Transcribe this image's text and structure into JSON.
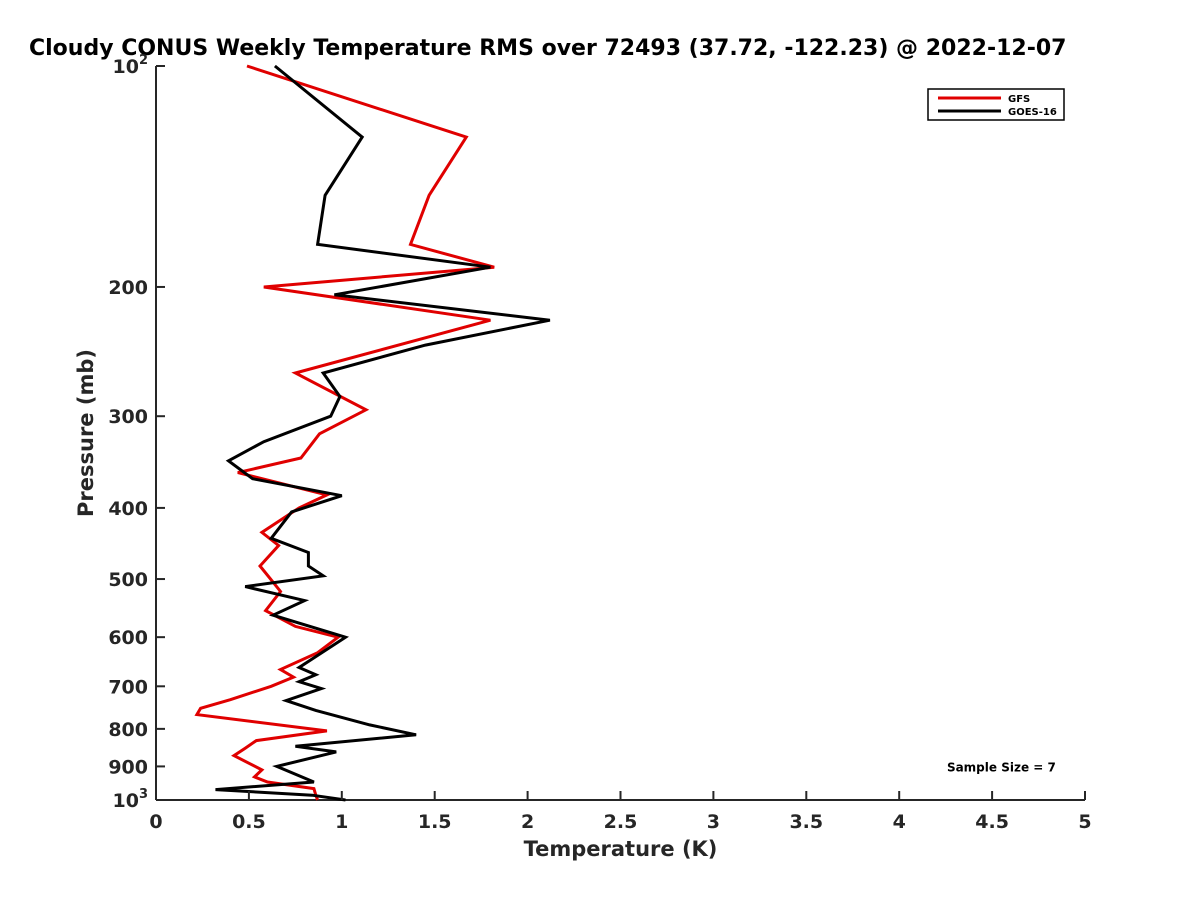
{
  "chart_data": {
    "type": "line",
    "title": "Cloudy CONUS Weekly Temperature RMS over 72493 (37.72, -122.23) @ 2022-12-07",
    "xlabel": "Temperature (K)",
    "ylabel": "Pressure (mb)",
    "xlim": [
      0,
      5
    ],
    "ylim": [
      100,
      1000
    ],
    "y_scale": "log",
    "y_reversed": true,
    "x_ticks": [
      0,
      0.5,
      1,
      1.5,
      2,
      2.5,
      3,
      3.5,
      4,
      4.5,
      5
    ],
    "x_tick_labels": [
      "0",
      "0.5",
      "1",
      "1.5",
      "2",
      "2.5",
      "3",
      "3.5",
      "4",
      "4.5",
      "5"
    ],
    "y_ticks": [
      {
        "value": 100,
        "base": "10",
        "exp": "2"
      },
      {
        "value": 200,
        "label": "200"
      },
      {
        "value": 300,
        "label": "300"
      },
      {
        "value": 400,
        "label": "400"
      },
      {
        "value": 500,
        "label": "500"
      },
      {
        "value": 600,
        "label": "600"
      },
      {
        "value": 700,
        "label": "700"
      },
      {
        "value": 800,
        "label": "800"
      },
      {
        "value": 900,
        "label": "900"
      },
      {
        "value": 1000,
        "base": "10",
        "exp": "3"
      }
    ],
    "grid": false,
    "legend_position": "top-right",
    "series": [
      {
        "name": "GFS",
        "color": "#e00000",
        "points": [
          [
            0.49,
            100
          ],
          [
            1.67,
            125
          ],
          [
            1.47,
            150
          ],
          [
            1.37,
            175
          ],
          [
            1.82,
            188
          ],
          [
            0.58,
            200
          ],
          [
            1.8,
            222
          ],
          [
            0.75,
            262
          ],
          [
            1.13,
            294
          ],
          [
            0.88,
            317
          ],
          [
            0.78,
            342
          ],
          [
            0.44,
            358
          ],
          [
            0.92,
            384
          ],
          [
            0.77,
            400
          ],
          [
            0.57,
            432
          ],
          [
            0.66,
            450
          ],
          [
            0.56,
            480
          ],
          [
            0.63,
            505
          ],
          [
            0.67,
            520
          ],
          [
            0.59,
            552
          ],
          [
            0.75,
            580
          ],
          [
            0.98,
            600
          ],
          [
            0.87,
            630
          ],
          [
            0.67,
            664
          ],
          [
            0.74,
            680
          ],
          [
            0.62,
            700
          ],
          [
            0.4,
            730
          ],
          [
            0.24,
            750
          ],
          [
            0.22,
            765
          ],
          [
            0.92,
            805
          ],
          [
            0.54,
            830
          ],
          [
            0.48,
            850
          ],
          [
            0.42,
            870
          ],
          [
            0.57,
            910
          ],
          [
            0.53,
            930
          ],
          [
            0.6,
            945
          ],
          [
            0.85,
            965
          ],
          [
            0.86,
            985
          ],
          [
            0.87,
            1000
          ]
        ]
      },
      {
        "name": "GOES-16",
        "color": "#000000",
        "points": [
          [
            0.64,
            100
          ],
          [
            1.11,
            125
          ],
          [
            0.91,
            150
          ],
          [
            0.87,
            175
          ],
          [
            1.8,
            188
          ],
          [
            0.96,
            205
          ],
          [
            2.12,
            222
          ],
          [
            1.45,
            240
          ],
          [
            0.9,
            262
          ],
          [
            0.99,
            282
          ],
          [
            0.94,
            300
          ],
          [
            0.58,
            325
          ],
          [
            0.39,
            345
          ],
          [
            0.52,
            365
          ],
          [
            1.0,
            385
          ],
          [
            0.73,
            405
          ],
          [
            0.62,
            440
          ],
          [
            0.82,
            460
          ],
          [
            0.82,
            480
          ],
          [
            0.9,
            495
          ],
          [
            0.48,
            512
          ],
          [
            0.8,
            535
          ],
          [
            0.63,
            560
          ],
          [
            1.02,
            600
          ],
          [
            0.77,
            660
          ],
          [
            0.86,
            675
          ],
          [
            0.77,
            690
          ],
          [
            0.89,
            705
          ],
          [
            0.7,
            732
          ],
          [
            0.86,
            755
          ],
          [
            1.15,
            790
          ],
          [
            1.4,
            815
          ],
          [
            0.75,
            845
          ],
          [
            0.97,
            860
          ],
          [
            0.65,
            900
          ],
          [
            0.85,
            945
          ],
          [
            0.32,
            968
          ],
          [
            0.84,
            985
          ],
          [
            1.02,
            1000
          ]
        ]
      }
    ],
    "annotations": [
      {
        "text": "Sample Size = 7",
        "x": 4.3,
        "y": 900
      }
    ]
  }
}
